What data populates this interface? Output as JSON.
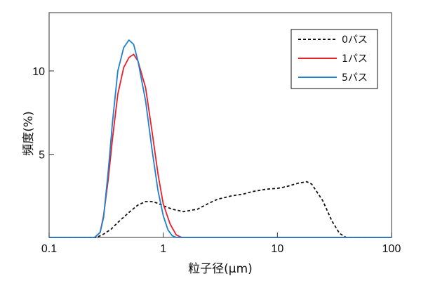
{
  "chart_data": {
    "type": "line",
    "title": "",
    "xlabel": "粒子径(μm)",
    "ylabel": "頻度(%)",
    "xscale": "log",
    "xlim": [
      0.1,
      100
    ],
    "ylim": [
      0,
      13.5
    ],
    "x_ticks": [
      "0.1",
      "1",
      "10",
      "100"
    ],
    "y_ticks": [
      "5",
      "10"
    ],
    "grid": false,
    "legend_position": "top-right",
    "series": [
      {
        "name": "0パス",
        "color": "#111111",
        "dash": "dashed",
        "points": [
          [
            0.1,
            0
          ],
          [
            0.26,
            0
          ],
          [
            0.3,
            0.2
          ],
          [
            0.35,
            0.5
          ],
          [
            0.4,
            0.9
          ],
          [
            0.5,
            1.5
          ],
          [
            0.6,
            1.95
          ],
          [
            0.7,
            2.15
          ],
          [
            0.8,
            2.15
          ],
          [
            0.9,
            2.05
          ],
          [
            1.0,
            1.9
          ],
          [
            1.2,
            1.7
          ],
          [
            1.5,
            1.55
          ],
          [
            2.0,
            1.7
          ],
          [
            2.5,
            2.05
          ],
          [
            3.0,
            2.3
          ],
          [
            4.0,
            2.5
          ],
          [
            5.0,
            2.6
          ],
          [
            6.0,
            2.75
          ],
          [
            8.0,
            2.9
          ],
          [
            10.0,
            2.95
          ],
          [
            12.0,
            3.05
          ],
          [
            15.0,
            3.25
          ],
          [
            18.0,
            3.35
          ],
          [
            20.0,
            3.2
          ],
          [
            25.0,
            2.2
          ],
          [
            30.0,
            1.0
          ],
          [
            35.0,
            0.25
          ],
          [
            40.0,
            0
          ],
          [
            100,
            0
          ]
        ]
      },
      {
        "name": "1パス",
        "color": "#e8202a",
        "dash": "solid",
        "points": [
          [
            0.1,
            0
          ],
          [
            0.25,
            0
          ],
          [
            0.28,
            0.3
          ],
          [
            0.3,
            1.3
          ],
          [
            0.33,
            3.5
          ],
          [
            0.36,
            6.0
          ],
          [
            0.4,
            8.6
          ],
          [
            0.45,
            10.2
          ],
          [
            0.5,
            10.8
          ],
          [
            0.55,
            11.0
          ],
          [
            0.6,
            10.6
          ],
          [
            0.7,
            9.0
          ],
          [
            0.8,
            6.3
          ],
          [
            0.9,
            3.8
          ],
          [
            1.0,
            2.0
          ],
          [
            1.15,
            0.8
          ],
          [
            1.3,
            0.15
          ],
          [
            1.45,
            0
          ],
          [
            100,
            0
          ]
        ]
      },
      {
        "name": "5パス",
        "color": "#1f7fd0",
        "dash": "solid",
        "points": [
          [
            0.1,
            0
          ],
          [
            0.25,
            0
          ],
          [
            0.28,
            0.3
          ],
          [
            0.3,
            1.2
          ],
          [
            0.33,
            4.0
          ],
          [
            0.36,
            7.0
          ],
          [
            0.4,
            10.0
          ],
          [
            0.45,
            11.4
          ],
          [
            0.5,
            11.85
          ],
          [
            0.55,
            11.6
          ],
          [
            0.6,
            10.6
          ],
          [
            0.7,
            8.2
          ],
          [
            0.8,
            5.2
          ],
          [
            0.9,
            2.8
          ],
          [
            1.0,
            1.3
          ],
          [
            1.1,
            0.45
          ],
          [
            1.2,
            0.1
          ],
          [
            1.3,
            0
          ],
          [
            100,
            0
          ]
        ]
      }
    ]
  }
}
